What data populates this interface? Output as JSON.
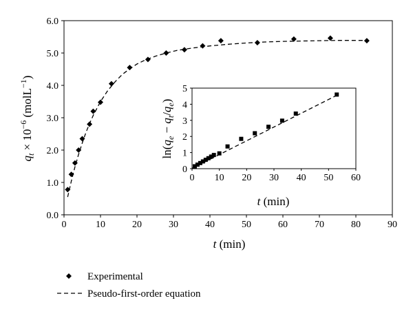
{
  "chart_data": [
    {
      "type": "scatter",
      "xlabel": "t (min)",
      "ylabel": "q_t × 10^-6 (molL^-1)",
      "xlim": [
        0,
        90
      ],
      "ylim": [
        0.0,
        6.0
      ],
      "xticks": [
        "0",
        "10",
        "20",
        "30",
        "40",
        "50",
        "60",
        "70",
        "80",
        "90"
      ],
      "yticks": [
        "0.0",
        "1.0",
        "2.0",
        "3.0",
        "4.0",
        "5.0",
        "6.0"
      ],
      "grid": false,
      "legend_position": "bottom-left",
      "series": [
        {
          "name": "Experimental",
          "marker": "diamond",
          "x": [
            1,
            2,
            3,
            4,
            5,
            7,
            8,
            10,
            13,
            18,
            23,
            28,
            33,
            38,
            43,
            53,
            63,
            73,
            83
          ],
          "y": [
            0.78,
            1.25,
            1.6,
            2.0,
            2.35,
            2.8,
            3.2,
            3.48,
            4.05,
            4.55,
            4.8,
            5.0,
            5.1,
            5.22,
            5.38,
            5.32,
            5.43,
            5.46,
            5.38
          ]
        },
        {
          "name": "Pseudo-first-order equation",
          "style": "dashed",
          "x": [
            1,
            2,
            3,
            4,
            5,
            6,
            7,
            8,
            10,
            12,
            14,
            16,
            18,
            20,
            22,
            25,
            28,
            31,
            35,
            40,
            45,
            50,
            55,
            60,
            65,
            70,
            75,
            80,
            83
          ],
          "y": [
            0.55,
            1.04,
            1.48,
            1.87,
            2.22,
            2.54,
            2.82,
            3.07,
            3.5,
            3.84,
            4.11,
            4.34,
            4.51,
            4.66,
            4.77,
            4.9,
            5.0,
            5.08,
            5.15,
            5.22,
            5.27,
            5.31,
            5.34,
            5.36,
            5.37,
            5.38,
            5.39,
            5.39,
            5.39
          ]
        }
      ]
    },
    {
      "type": "scatter",
      "xlabel": "t (min)",
      "ylabel": "ln(q_e − q_t/q_e)",
      "xlim": [
        0,
        60
      ],
      "ylim": [
        0,
        5
      ],
      "xticks": [
        "0",
        "10",
        "20",
        "30",
        "40",
        "50",
        "60"
      ],
      "yticks": [
        "0",
        "1",
        "2",
        "3",
        "4",
        "5"
      ],
      "grid": false,
      "series": [
        {
          "marker": "square",
          "x": [
            1,
            2,
            3,
            4,
            5,
            6,
            7,
            8,
            10,
            13,
            18,
            23,
            28,
            33,
            38,
            53
          ],
          "y": [
            0.15,
            0.25,
            0.35,
            0.45,
            0.55,
            0.65,
            0.75,
            0.85,
            0.95,
            1.38,
            1.85,
            2.2,
            2.6,
            2.98,
            3.42,
            4.6
          ]
        },
        {
          "style": "dashed",
          "x": [
            0,
            53
          ],
          "y": [
            0.02,
            4.55
          ]
        }
      ]
    }
  ],
  "legend": {
    "items": [
      "Experimental",
      "Pseudo-first-order equation"
    ]
  }
}
